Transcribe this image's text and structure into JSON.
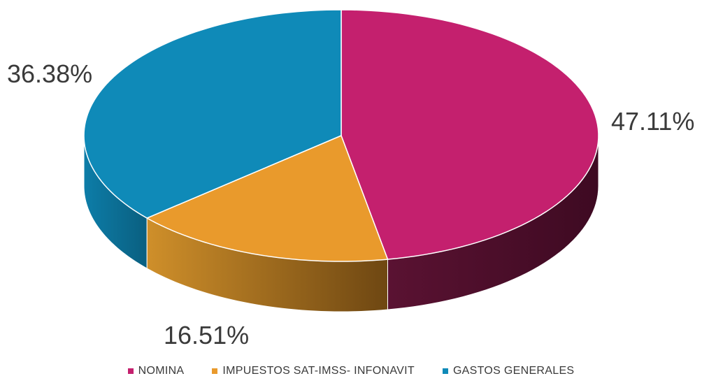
{
  "chart_data": {
    "type": "pie",
    "three_d": true,
    "legend_position": "bottom",
    "slices": [
      {
        "label": "NOMINA",
        "value": 47.11,
        "display": "47.11%",
        "color": "#c4206e",
        "side_color": "#4e0f2c"
      },
      {
        "label": "IMPUESTOS SAT-IMSS- INFONAVIT",
        "value": 16.51,
        "display": "16.51%",
        "color": "#e99a2c",
        "side_color": "#9a6218"
      },
      {
        "label": "GASTOS GENERALES",
        "value": 36.38,
        "display": "36.38%",
        "color": "#0f8ab8",
        "side_color": "#0a6a8e"
      }
    ]
  }
}
